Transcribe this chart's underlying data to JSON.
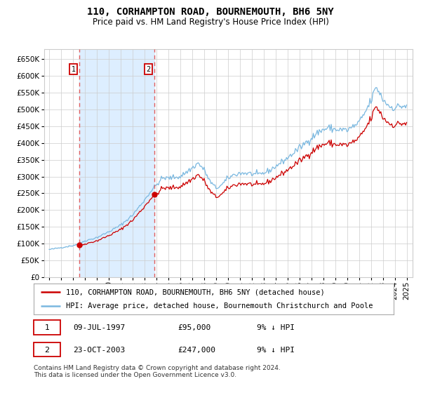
{
  "title": "110, CORHAMPTON ROAD, BOURNEMOUTH, BH6 5NY",
  "subtitle": "Price paid vs. HM Land Registry's House Price Index (HPI)",
  "legend_line1": "110, CORHAMPTON ROAD, BOURNEMOUTH, BH6 5NY (detached house)",
  "legend_line2": "HPI: Average price, detached house, Bournemouth Christchurch and Poole",
  "footer": "Contains HM Land Registry data © Crown copyright and database right 2024.\nThis data is licensed under the Open Government Licence v3.0.",
  "sale1_label": "09-JUL-1997",
  "sale1_price": 95000,
  "sale1_price_str": "£95,000",
  "sale1_note": "9% ↓ HPI",
  "sale2_label": "23-OCT-2003",
  "sale2_price": 247000,
  "sale2_price_str": "£247,000",
  "sale2_note": "9% ↓ HPI",
  "hpi_color": "#7ab8e0",
  "price_color": "#cc0000",
  "shade_color": "#ddeeff",
  "vline_color": "#e06060",
  "background_color": "#ffffff",
  "grid_color": "#cccccc",
  "ylim": [
    0,
    680000
  ],
  "yticks": [
    0,
    50000,
    100000,
    150000,
    200000,
    250000,
    300000,
    350000,
    400000,
    450000,
    500000,
    550000,
    600000,
    650000
  ],
  "xlim_left": 1994.58,
  "xlim_right": 2025.5,
  "title_fontsize": 10,
  "subtitle_fontsize": 8.5,
  "axis_fontsize": 7.5,
  "legend_fontsize": 7.5,
  "footer_fontsize": 6.5
}
